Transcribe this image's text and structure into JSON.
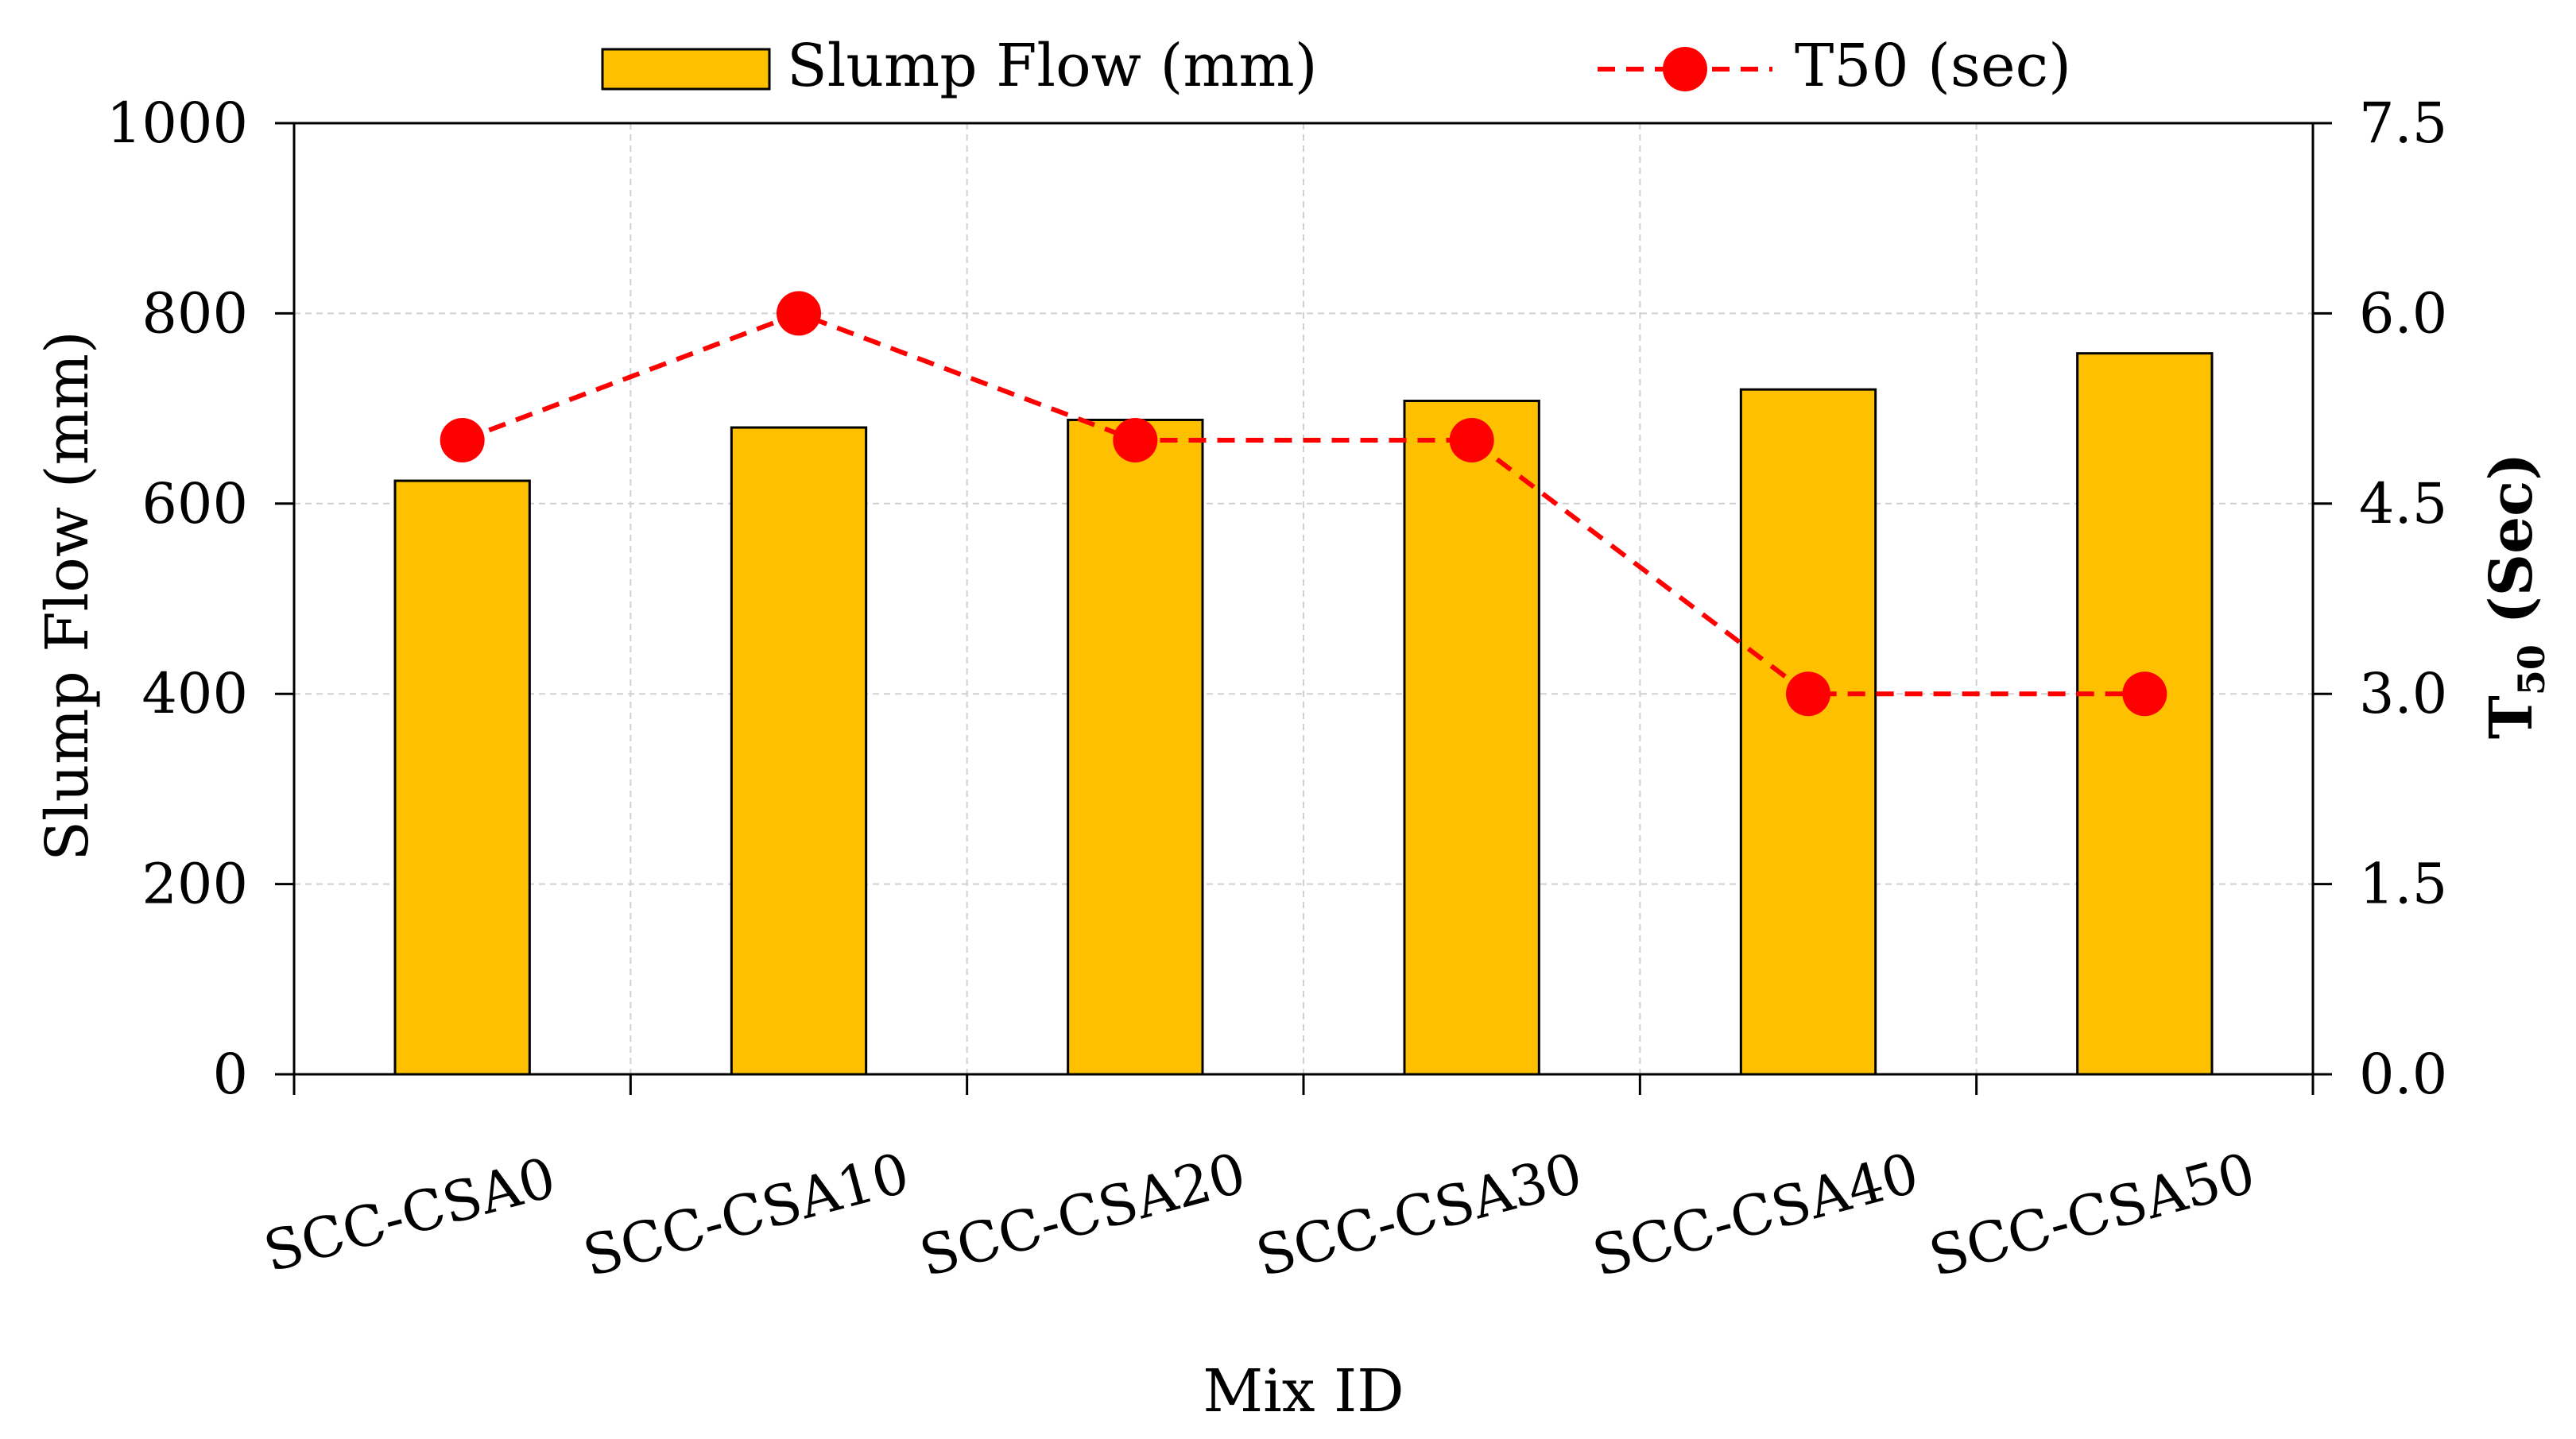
{
  "chart_data": {
    "type": "bar+line",
    "categories": [
      "SCC-CSA0",
      "SCC-CSA10",
      "SCC-CSA20",
      "SCC-CSA30",
      "SCC-CSA40",
      "SCC-CSA50"
    ],
    "series": [
      {
        "name": "Slump Flow (mm)",
        "type": "bar",
        "axis": "left",
        "values": [
          624,
          680,
          688,
          708,
          720,
          758
        ],
        "color": "#FFC000",
        "edge_color": "#000000"
      },
      {
        "name": "T50 (sec)",
        "type": "line",
        "axis": "right",
        "values": [
          5.0,
          6.0,
          5.0,
          5.0,
          3.0,
          3.0
        ],
        "color": "#FF0000",
        "line_style": "dashed",
        "marker": "circle"
      }
    ],
    "xlabel": "Mix ID",
    "ylabel": "Slump Flow (mm)",
    "y2label_main": "T",
    "y2label_sub": "50",
    "y2label_rest": " (Sec)",
    "ylim": [
      0,
      1000
    ],
    "yticks": [
      "0",
      "200",
      "400",
      "600",
      "800",
      "1000"
    ],
    "y2lim": [
      0,
      7.5
    ],
    "y2ticks": [
      "0.0",
      "1.5",
      "3.0",
      "4.5",
      "6.0",
      "7.5"
    ],
    "grid": true,
    "legend_position": "top"
  }
}
